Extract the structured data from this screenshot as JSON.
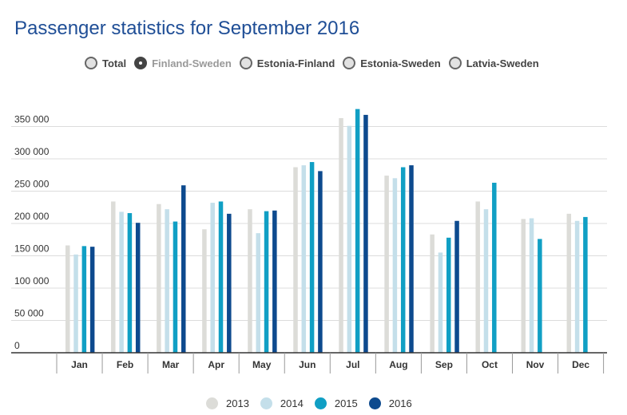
{
  "title": "Passenger statistics for September 2016",
  "routes": [
    {
      "label": "Total",
      "selected": false
    },
    {
      "label": "Finland-Sweden",
      "selected": true
    },
    {
      "label": "Estonia-Finland",
      "selected": false
    },
    {
      "label": "Estonia-Sweden",
      "selected": false
    },
    {
      "label": "Latvia-Sweden",
      "selected": false
    }
  ],
  "chart_data": {
    "type": "bar",
    "categories": [
      "Jan",
      "Feb",
      "Mar",
      "Apr",
      "May",
      "Jun",
      "Jul",
      "Aug",
      "Sep",
      "Oct",
      "Nov",
      "Dec"
    ],
    "series": [
      {
        "name": "2013",
        "color": "#dcdcd8",
        "values": [
          166000,
          234000,
          230000,
          191000,
          222000,
          287000,
          363000,
          274000,
          183000,
          234000,
          207000,
          215000
        ]
      },
      {
        "name": "2014",
        "color": "#c4dfea",
        "values": [
          152000,
          218000,
          222000,
          232000,
          185000,
          290000,
          351000,
          270000,
          155000,
          222000,
          208000,
          204000
        ]
      },
      {
        "name": "2015",
        "color": "#109fc4",
        "values": [
          165000,
          216000,
          203000,
          234000,
          219000,
          295000,
          377000,
          287000,
          178000,
          263000,
          176000,
          210000
        ]
      },
      {
        "name": "2016",
        "color": "#0d4a8e",
        "values": [
          164000,
          201000,
          259000,
          215000,
          220000,
          281000,
          368000,
          290000,
          204000,
          null,
          null,
          null
        ]
      }
    ],
    "yticks": [
      "0",
      "50 000",
      "100 000",
      "150 000",
      "200 000",
      "250 000",
      "300 000",
      "350 000"
    ],
    "ylim": [
      0,
      400000
    ],
    "grid": true
  }
}
